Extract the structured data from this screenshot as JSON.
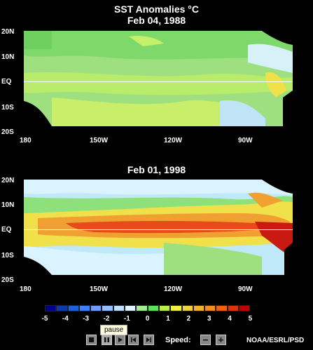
{
  "title_line1": "SST Anomalies °C",
  "map1": {
    "date": "Feb 04, 1988",
    "lat_labels": [
      "20N",
      "10N",
      "EQ",
      "10S",
      "20S"
    ],
    "lon_labels": [
      "180",
      "150W",
      "120W",
      "90W"
    ]
  },
  "map2": {
    "date": "Feb 01, 1998",
    "lat_labels": [
      "20N",
      "10N",
      "EQ",
      "10S",
      "20S"
    ],
    "lon_labels": [
      "180",
      "150W",
      "120W",
      "90W"
    ]
  },
  "colorbar": {
    "ticks": [
      "-5",
      "-4",
      "-3",
      "-2",
      "-1",
      "0",
      "1",
      "2",
      "3",
      "4",
      "5"
    ],
    "colors": [
      "#00008b",
      "#0a3ca8",
      "#1f5fd8",
      "#3f7fff",
      "#6b9fff",
      "#94bfff",
      "#bfdfff",
      "#e0f4ff",
      "#9ef08c",
      "#5fe05f",
      "#b8f04a",
      "#f0f040",
      "#f0d040",
      "#f0b030",
      "#f08c20",
      "#f06010",
      "#e03010",
      "#c00000"
    ]
  },
  "controls": {
    "tooltip": "pause",
    "stop_icon": "stop-icon",
    "pause_icon": "pause-icon",
    "play_icon": "play-icon",
    "step_back_icon": "step-back-icon",
    "step_forward_icon": "step-forward-icon",
    "speed_label": "Speed:",
    "speed_down_icon": "minus-icon",
    "speed_up_icon": "plus-icon"
  },
  "credit": "NOAA/ESRL/PSD"
}
